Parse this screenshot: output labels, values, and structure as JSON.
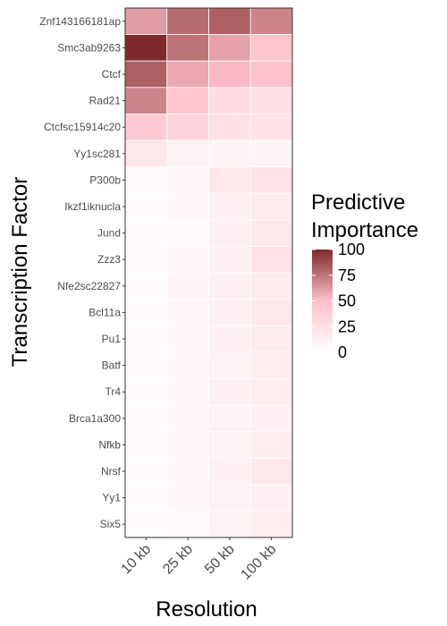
{
  "chart_data": {
    "type": "heatmap",
    "title": "",
    "xlabel": "Resolution",
    "ylabel": "Transcription Factor",
    "x": [
      "10 kb",
      "25 kb",
      "50 kb",
      "100 kb"
    ],
    "y": [
      "Znf143166181ap",
      "Smc3ab9263",
      "Ctcf",
      "Rad21",
      "Ctcfsc15914c20",
      "Yy1sc281",
      "P300b",
      "Ikzf1iknucla",
      "Jund",
      "Zzz3",
      "Nfe2sc22827",
      "Bcl11a",
      "Pu1",
      "Batf",
      "Tr4",
      "Brca1a300",
      "Nfkb",
      "Nrsf",
      "Yy1",
      "Six5"
    ],
    "values": [
      [
        62,
        78,
        82,
        70
      ],
      [
        100,
        76,
        60,
        45
      ],
      [
        82,
        58,
        52,
        48
      ],
      [
        70,
        45,
        28,
        24
      ],
      [
        42,
        33,
        25,
        22
      ],
      [
        20,
        10,
        9,
        8
      ],
      [
        3,
        6,
        18,
        22
      ],
      [
        3,
        6,
        12,
        16
      ],
      [
        3,
        4,
        12,
        18
      ],
      [
        3,
        7,
        12,
        22
      ],
      [
        3,
        8,
        12,
        16
      ],
      [
        3,
        6,
        12,
        18
      ],
      [
        3,
        6,
        12,
        16
      ],
      [
        3,
        6,
        10,
        14
      ],
      [
        3,
        6,
        12,
        14
      ],
      [
        3,
        6,
        10,
        12
      ],
      [
        3,
        6,
        10,
        14
      ],
      [
        3,
        6,
        12,
        18
      ],
      [
        3,
        6,
        10,
        12
      ],
      [
        3,
        5,
        10,
        14
      ]
    ],
    "legend": {
      "title": [
        "Predictive",
        "Importance"
      ],
      "ticks": [
        100,
        75,
        50,
        25,
        0
      ],
      "range": [
        0,
        100
      ],
      "low_color": "#ffffff",
      "mid_color": "#ffc0cb",
      "high_color": "#7f2a2a",
      "placement": "right"
    }
  }
}
